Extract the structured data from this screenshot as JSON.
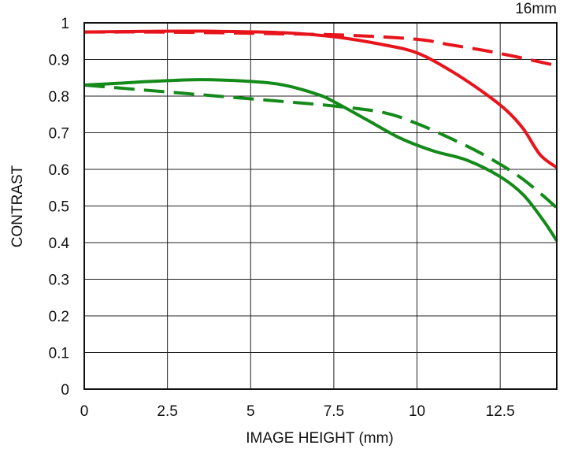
{
  "chart_data": {
    "type": "line",
    "title": "16mm",
    "xlabel": "IMAGE HEIGHT (mm)",
    "ylabel": "CONTRAST",
    "xlim": [
      0,
      14.2
    ],
    "ylim": [
      0,
      1
    ],
    "grid": true,
    "x_ticks": [
      "0",
      "2.5",
      "5",
      "7.5",
      "10",
      "12.5"
    ],
    "x_tick_values": [
      0,
      2.5,
      5,
      7.5,
      10,
      12.5
    ],
    "y_ticks": [
      "0",
      "0.1",
      "0.2",
      "0.3",
      "0.4",
      "0.5",
      "0.6",
      "0.7",
      "0.8",
      "0.9",
      "1"
    ],
    "y_tick_values": [
      0,
      0.1,
      0.2,
      0.3,
      0.4,
      0.5,
      0.6,
      0.7,
      0.8,
      0.9,
      1
    ],
    "series": [
      {
        "color": "#e8141c",
        "dash": false,
        "points": [
          [
            0,
            0.975
          ],
          [
            2,
            0.977
          ],
          [
            4,
            0.977
          ],
          [
            6,
            0.973
          ],
          [
            7.5,
            0.962
          ],
          [
            9,
            0.94
          ],
          [
            10,
            0.918
          ],
          [
            11,
            0.87
          ],
          [
            12,
            0.81
          ],
          [
            12.7,
            0.76
          ],
          [
            13.2,
            0.71
          ],
          [
            13.7,
            0.64
          ],
          [
            14.2,
            0.605
          ]
        ]
      },
      {
        "color": "#e8141c",
        "dash": true,
        "points": [
          [
            0,
            0.975
          ],
          [
            2,
            0.975
          ],
          [
            4,
            0.973
          ],
          [
            6,
            0.97
          ],
          [
            8,
            0.966
          ],
          [
            10,
            0.955
          ],
          [
            11,
            0.94
          ],
          [
            12,
            0.925
          ],
          [
            13,
            0.907
          ],
          [
            14.2,
            0.883
          ]
        ]
      },
      {
        "color": "#138a19",
        "dash": false,
        "points": [
          [
            0,
            0.83
          ],
          [
            1,
            0.835
          ],
          [
            2,
            0.84
          ],
          [
            3.5,
            0.845
          ],
          [
            5,
            0.84
          ],
          [
            6,
            0.83
          ],
          [
            7,
            0.805
          ],
          [
            7.5,
            0.785
          ],
          [
            8.5,
            0.735
          ],
          [
            9.5,
            0.685
          ],
          [
            10.5,
            0.65
          ],
          [
            11.5,
            0.625
          ],
          [
            12.5,
            0.58
          ],
          [
            13.2,
            0.53
          ],
          [
            13.8,
            0.46
          ],
          [
            14.2,
            0.405
          ]
        ]
      },
      {
        "color": "#138a19",
        "dash": true,
        "points": [
          [
            0,
            0.83
          ],
          [
            2,
            0.815
          ],
          [
            4,
            0.8
          ],
          [
            6,
            0.785
          ],
          [
            7.5,
            0.773
          ],
          [
            9,
            0.755
          ],
          [
            10,
            0.725
          ],
          [
            11,
            0.685
          ],
          [
            12,
            0.64
          ],
          [
            13,
            0.585
          ],
          [
            13.7,
            0.535
          ],
          [
            14.2,
            0.495
          ]
        ]
      }
    ]
  }
}
